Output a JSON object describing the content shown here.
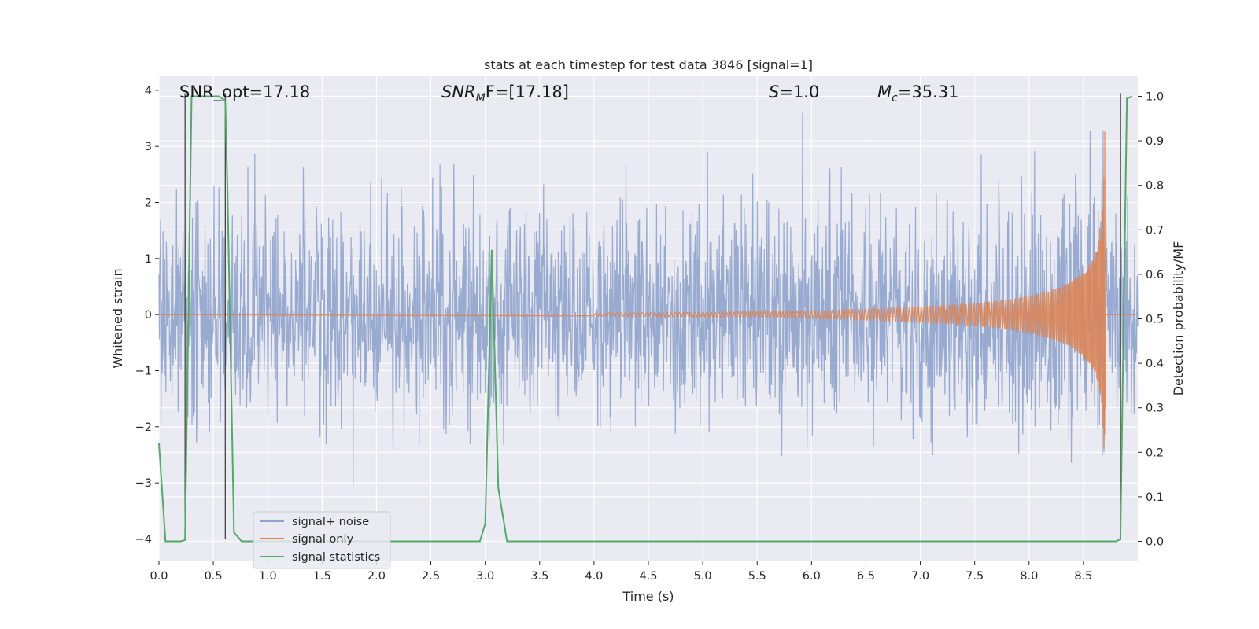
{
  "chart_data": {
    "type": "line",
    "title": "stats at each timestep for test data 3846 [signal=1]",
    "xlabel": "Time (s)",
    "ylabel": "Whitened strain",
    "y2label": "Detection probability/MF",
    "xlim": [
      0.0,
      9.0
    ],
    "ylim": [
      -4.4,
      4.25
    ],
    "y2lim": [
      -0.045,
      1.045
    ],
    "xticks": [
      "0.0",
      "0.5",
      "1.0",
      "1.5",
      "2.0",
      "2.5",
      "3.0",
      "3.5",
      "4.0",
      "4.5",
      "5.0",
      "5.5",
      "6.0",
      "6.5",
      "7.0",
      "7.5",
      "8.0",
      "8.5"
    ],
    "yticks": [
      "−4",
      "−3",
      "−2",
      "−1",
      "0",
      "1",
      "2",
      "3",
      "4"
    ],
    "y2ticks": [
      "0.0",
      "0.1",
      "0.2",
      "0.3",
      "0.4",
      "0.5",
      "0.6",
      "0.7",
      "0.8",
      "0.9",
      "1.0"
    ],
    "grid": true,
    "legend_position": "lower-left",
    "annotations": {
      "snr_opt": "SNR_opt=17.18",
      "snr_mf_sym": "SNR",
      "snr_mf_sub": "M",
      "snr_mf_rest": "F=[17.18]",
      "s_sym": "S",
      "s_rest": "=1.0",
      "mc_sym": "M",
      "mc_sub": "c",
      "mc_rest": "=35.31"
    },
    "vertical_markers": [
      0.24,
      0.61,
      8.84
    ],
    "series": [
      {
        "name": "signal+ noise",
        "color": "#8fa3cc",
        "description": "whitened noisy strain, approx. gaussian with std ~1, spanning 0.0–9.0 s"
      },
      {
        "name": "signal only",
        "color": "#dd8452",
        "chirp_end": 8.7,
        "chirp_peak": 3.9
      },
      {
        "name": "signal statistics",
        "color": "#55a868",
        "axis": "right",
        "x": [
          0.0,
          0.06,
          0.2,
          0.24,
          0.3,
          0.55,
          0.61,
          0.63,
          0.69,
          0.76,
          2.95,
          3.0,
          3.06,
          3.12,
          3.2,
          8.7,
          8.8,
          8.84,
          8.9,
          8.95
        ],
        "y": [
          0.22,
          0.0,
          0.0,
          0.003,
          1.0,
          1.0,
          0.99,
          0.79,
          0.02,
          0.0,
          0.0,
          0.04,
          0.655,
          0.12,
          0.0,
          0.0,
          0.0,
          0.005,
          0.995,
          1.0
        ]
      }
    ]
  }
}
